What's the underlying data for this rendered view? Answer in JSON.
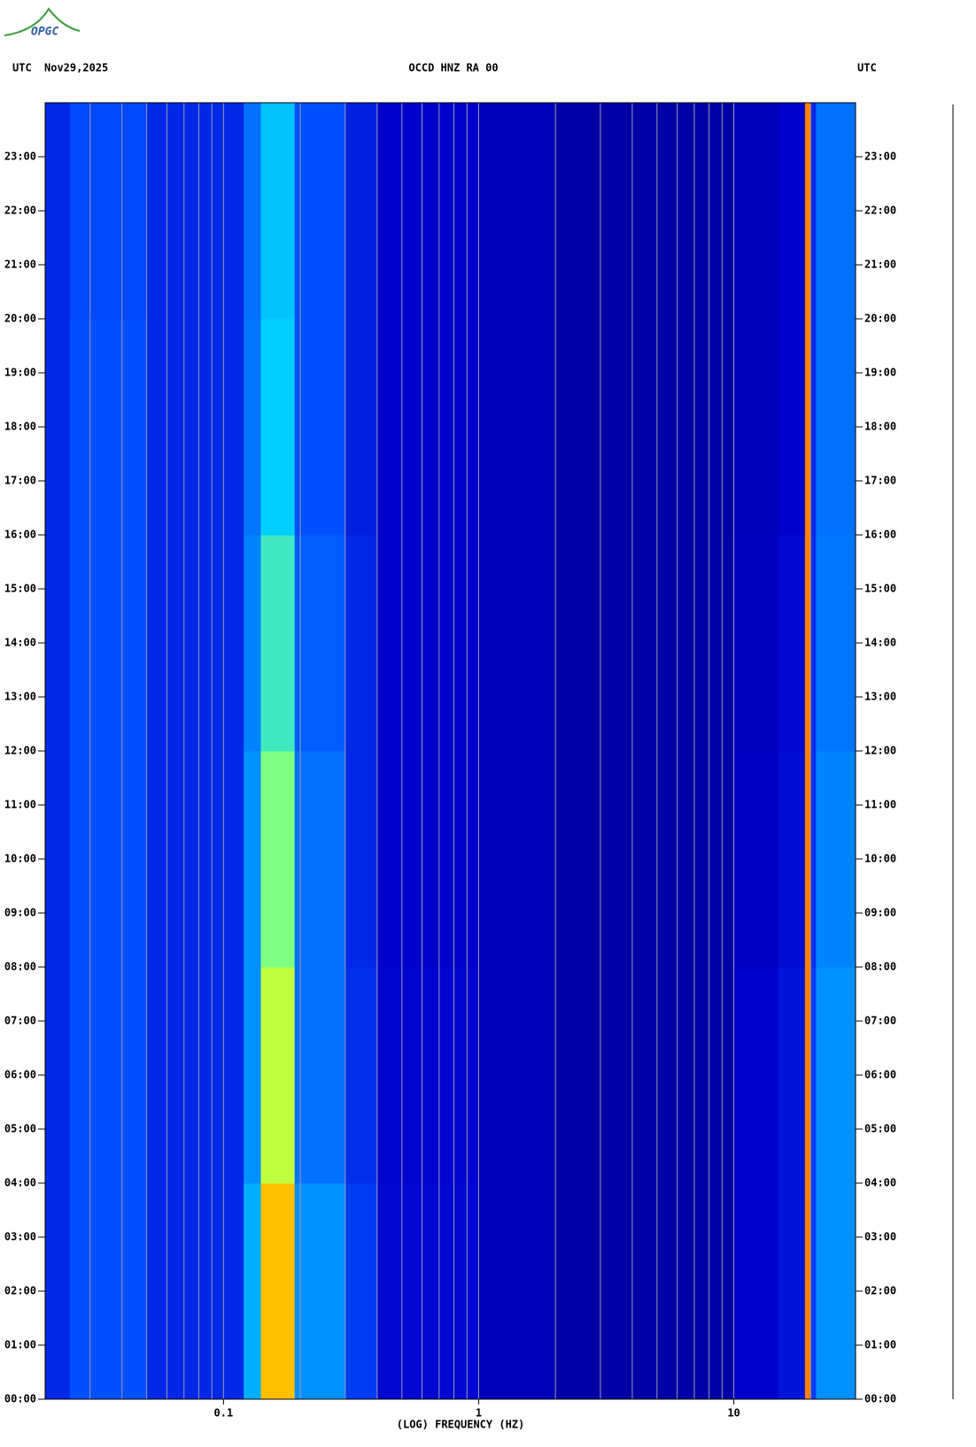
{
  "chart_data": {
    "type": "heatmap",
    "logo": "OPGC",
    "title": "OCCD HNZ RA 00",
    "date": "Nov29,2025",
    "left_label": "UTC",
    "right_label": "UTC",
    "xlabel": "(LOG) FREQUENCY (HZ)",
    "xscale": "log",
    "xlim": [
      0.02,
      30
    ],
    "xticks": [
      0.1,
      1,
      10
    ],
    "xgrid": [
      0.03,
      0.04,
      0.05,
      0.06,
      0.07,
      0.08,
      0.09,
      0.1,
      0.2,
      0.3,
      0.4,
      0.5,
      0.6,
      0.7,
      0.8,
      0.9,
      1,
      2,
      3,
      4,
      5,
      6,
      7,
      8,
      9,
      10,
      20
    ],
    "grid": true,
    "ylim": [
      0,
      24
    ],
    "yticks": [
      {
        "value": 0,
        "label": "00:00"
      },
      {
        "value": 1,
        "label": "01:00"
      },
      {
        "value": 2,
        "label": "02:00"
      },
      {
        "value": 3,
        "label": "03:00"
      },
      {
        "value": 4,
        "label": "04:00"
      },
      {
        "value": 5,
        "label": "05:00"
      },
      {
        "value": 6,
        "label": "06:00"
      },
      {
        "value": 7,
        "label": "07:00"
      },
      {
        "value": 8,
        "label": "08:00"
      },
      {
        "value": 9,
        "label": "09:00"
      },
      {
        "value": 10,
        "label": "10:00"
      },
      {
        "value": 11,
        "label": "11:00"
      },
      {
        "value": 12,
        "label": "12:00"
      },
      {
        "value": 13,
        "label": "13:00"
      },
      {
        "value": 14,
        "label": "14:00"
      },
      {
        "value": 15,
        "label": "15:00"
      },
      {
        "value": 16,
        "label": "16:00"
      },
      {
        "value": 17,
        "label": "17:00"
      },
      {
        "value": 18,
        "label": "18:00"
      },
      {
        "value": 19,
        "label": "19:00"
      },
      {
        "value": 20,
        "label": "20:00"
      },
      {
        "value": 21,
        "label": "21:00"
      },
      {
        "value": 22,
        "label": "22:00"
      },
      {
        "value": 23,
        "label": "23:00"
      }
    ],
    "x_edges": [
      0.02,
      0.025,
      0.05,
      0.12,
      0.14,
      0.19,
      0.3,
      0.4,
      1,
      2,
      10,
      15,
      19,
      20,
      21,
      30
    ],
    "y_edges": [
      0,
      4,
      8,
      12,
      16,
      20,
      24
    ],
    "z": [
      [
        3,
        4,
        3,
        5.5,
        8.5,
        5,
        3.5,
        2.2,
        1.5,
        1,
        2,
        2.5,
        9,
        3.5,
        5
      ],
      [
        3,
        4,
        3,
        5,
        7.5,
        4.5,
        3.2,
        2.1,
        1.5,
        1,
        2,
        2.5,
        9,
        3.5,
        5
      ],
      [
        3,
        4,
        3,
        5,
        7,
        4.5,
        3,
        2,
        1.5,
        1,
        1.8,
        2.3,
        9,
        3.2,
        4.8
      ],
      [
        3,
        4,
        3,
        4.8,
        6.5,
        4.2,
        3,
        2,
        1.5,
        1,
        1.7,
        2.2,
        9,
        3.2,
        4.6
      ],
      [
        3,
        4,
        3,
        4.6,
        6,
        4,
        2.8,
        2,
        1.5,
        1,
        1.5,
        2,
        9,
        3,
        4.5
      ],
      [
        3,
        3.8,
        3,
        4.5,
        5.8,
        4,
        2.8,
        2,
        1.5,
        1,
        1.5,
        2,
        9,
        3,
        4.5
      ]
    ],
    "colorscale": [
      [
        0,
        "#000080"
      ],
      [
        2,
        "#0000cc"
      ],
      [
        4,
        "#0050ff"
      ],
      [
        6,
        "#00d0ff"
      ],
      [
        7,
        "#80ff80"
      ],
      [
        8,
        "#ffff00"
      ],
      [
        9,
        "#ff8000"
      ],
      [
        10,
        "#cc0000"
      ]
    ]
  }
}
